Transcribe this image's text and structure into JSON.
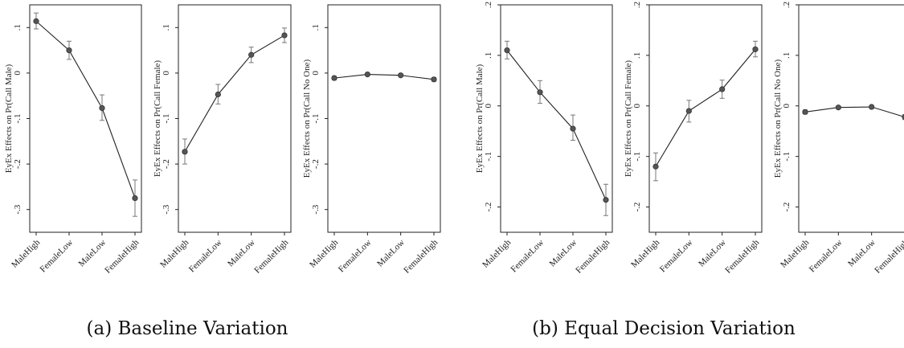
{
  "captions": {
    "a": "(a) Baseline Variation",
    "b": "(b) Equal Decision Variation"
  },
  "chart_data": [
    {
      "type": "line",
      "group": "a",
      "categories": [
        "MaleHigh",
        "FemaleLow",
        "MaleLow",
        "FemaleHigh"
      ],
      "ylabel": "EyEx Effects on Pr(Call Male)",
      "ylim": [
        -0.35,
        0.15
      ],
      "yticks": [
        0.1,
        0,
        -0.1,
        -0.2,
        -0.3
      ],
      "yticklabels": [
        ".1",
        "0",
        "-.1",
        "-.2",
        "-.3"
      ],
      "values": [
        0.114,
        0.05,
        -0.077,
        -0.275
      ],
      "ci": [
        [
          0.097,
          0.132
        ],
        [
          0.03,
          0.07
        ],
        [
          -0.104,
          -0.048
        ],
        [
          -0.315,
          -0.235
        ]
      ]
    },
    {
      "type": "line",
      "group": "a",
      "categories": [
        "MaleHigh",
        "FemaleLow",
        "MaleLow",
        "FemaleHigh"
      ],
      "ylabel": "EyEx Effects on Pr(Call Female)",
      "ylim": [
        -0.35,
        0.15
      ],
      "yticks": [
        0.1,
        0,
        -0.1,
        -0.2,
        -0.3
      ],
      "yticklabels": [
        ".1",
        "0",
        "-.1",
        "-.2",
        "-.3"
      ],
      "values": [
        -0.173,
        -0.047,
        0.04,
        0.083
      ],
      "ci": [
        [
          -0.2,
          -0.145
        ],
        [
          -0.068,
          -0.025
        ],
        [
          0.023,
          0.057
        ],
        [
          0.067,
          0.099
        ]
      ]
    },
    {
      "type": "line",
      "group": "a",
      "categories": [
        "MaleHigh",
        "FemaleLow",
        "MaleLow",
        "FemaleHigh"
      ],
      "ylabel": "EyEx Effects on Pr(Call No One)",
      "ylim": [
        -0.35,
        0.15
      ],
      "yticks": [
        0.1,
        0,
        -0.1,
        -0.2,
        -0.3
      ],
      "yticklabels": [
        ".1",
        "0",
        "-.1",
        "-.2",
        "-.3"
      ],
      "values": [
        -0.011,
        -0.003,
        -0.005,
        -0.014
      ],
      "ci": [
        [
          -0.015,
          -0.007
        ],
        [
          -0.005,
          -0.001
        ],
        [
          -0.007,
          -0.003
        ],
        [
          -0.018,
          -0.01
        ]
      ]
    },
    {
      "type": "line",
      "group": "b",
      "categories": [
        "MaleHigh",
        "FemaleLow",
        "MaleLow",
        "FemaleHigh"
      ],
      "ylabel": "EyEx Effects on Pr(Call Male)",
      "ylim": [
        -0.25,
        0.2
      ],
      "yticks": [
        0.2,
        0.1,
        0,
        -0.1,
        -0.2
      ],
      "yticklabels": [
        ".2",
        ".1",
        "0",
        "-.1",
        "-.2"
      ],
      "values": [
        0.11,
        0.027,
        -0.045,
        -0.186
      ],
      "ci": [
        [
          0.093,
          0.128
        ],
        [
          0.005,
          0.05
        ],
        [
          -0.068,
          -0.018
        ],
        [
          -0.217,
          -0.155
        ]
      ]
    },
    {
      "type": "line",
      "group": "b",
      "categories": [
        "MaleHigh",
        "FemaleLow",
        "MaleLow",
        "FemaleHigh"
      ],
      "ylabel": "EyEx Effects on Pr(Call Female)",
      "ylim": [
        -0.25,
        0.2
      ],
      "yticks": [
        0.2,
        0.1,
        0,
        -0.1,
        -0.2
      ],
      "yticklabels": [
        ".2",
        ".1",
        "0",
        "-.1",
        "-.2"
      ],
      "values": [
        -0.12,
        -0.01,
        0.033,
        0.112
      ],
      "ci": [
        [
          -0.148,
          -0.093
        ],
        [
          -0.032,
          0.011
        ],
        [
          0.015,
          0.051
        ],
        [
          0.097,
          0.128
        ]
      ]
    },
    {
      "type": "line",
      "group": "b",
      "categories": [
        "MaleHigh",
        "FemaleLow",
        "MaleLow",
        "FemaleHigh"
      ],
      "ylabel": "EyEx Effects on Pr(Call No One)",
      "ylim": [
        -0.25,
        0.2
      ],
      "yticks": [
        0.2,
        0.1,
        0,
        -0.1,
        -0.2
      ],
      "yticklabels": [
        ".2",
        ".1",
        "0",
        "-.1",
        "-.2"
      ],
      "values": [
        -0.012,
        -0.003,
        -0.002,
        -0.022
      ],
      "ci": [
        [
          -0.016,
          -0.008
        ],
        [
          -0.005,
          -0.001
        ],
        [
          -0.004,
          0.0
        ],
        [
          -0.027,
          -0.017
        ]
      ]
    }
  ]
}
